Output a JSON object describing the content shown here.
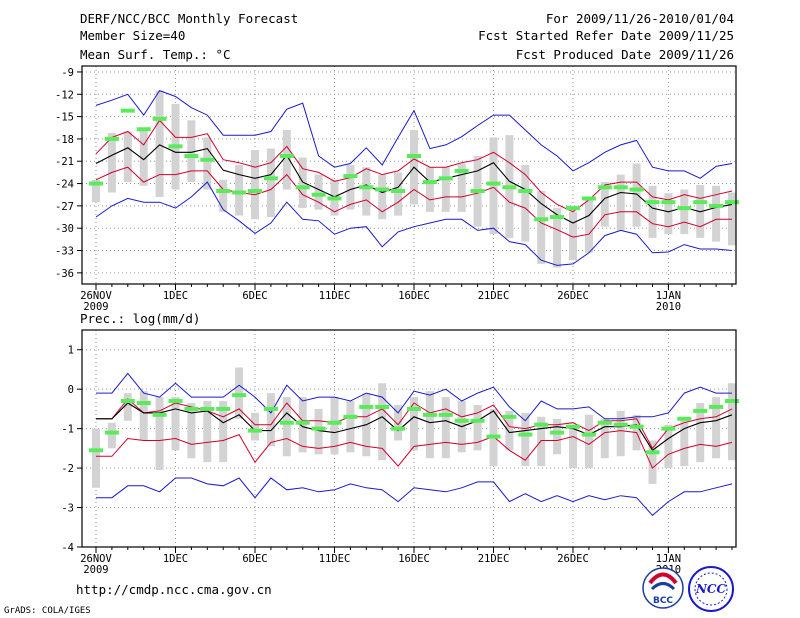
{
  "header": {
    "title": "DERF/NCC/BCC Monthly Forecast",
    "member_size": "Member Size=40",
    "variable": "Mean Surf. Temp.: °C",
    "period": "For 2009/11/26-2010/01/04",
    "started": "Fcst Started Refer Date 2009/11/25",
    "produced": "Fcst Produced Date 2009/11/26"
  },
  "footer": {
    "url": "http://cmdp.ncc.cma.gov.cn",
    "credit": "GrADS: COLA/IGES",
    "logo_bcc": "BCC",
    "logo_ncc": "NCC"
  },
  "colors": {
    "box": "#d3d3d3",
    "mean": "#000000",
    "inner": "#d2002d",
    "outer": "#1a1acd",
    "marker": "#5aeb5a"
  },
  "chart_data": [
    {
      "type": "line",
      "title": "Mean Surf. Temp.: °C",
      "ylim": [
        -37.5,
        -8.2
      ],
      "yticks": [
        -9,
        -12,
        -15,
        -18,
        -21,
        -24,
        -27,
        -30,
        -33,
        -36
      ],
      "xlabels": [
        {
          "day": 0,
          "label": "26NOV",
          "sub": "2009"
        },
        {
          "day": 5,
          "label": "1DEC"
        },
        {
          "day": 10,
          "label": "6DEC"
        },
        {
          "day": 15,
          "label": "11DEC"
        },
        {
          "day": 20,
          "label": "16DEC"
        },
        {
          "day": 25,
          "label": "21DEC"
        },
        {
          "day": 30,
          "label": "26DEC"
        },
        {
          "day": 36,
          "label": "1JAN",
          "sub": "2010"
        }
      ],
      "series": [
        {
          "name": "max",
          "values": [
            -13.5,
            -12.8,
            -12,
            -14.8,
            -11.5,
            -12.3,
            -13.8,
            -14.8,
            -17.5,
            -17.5,
            -17.5,
            -17,
            -14,
            -13.2,
            -20.3,
            -21.8,
            -21.3,
            -19.2,
            -21.5,
            -17.8,
            -14.2,
            -19.3,
            -18.8,
            -17.7,
            -16.2,
            -14.8,
            -14.8,
            -16.8,
            -18.8,
            -20.3,
            -22.3,
            -21.2,
            -19.8,
            -18.8,
            -18.2,
            -21.8,
            -22.3,
            -22.3,
            -23.3,
            -21.7,
            -21.3
          ]
        },
        {
          "name": "p75",
          "values": [
            -20,
            -17.8,
            -17,
            -18.8,
            -15.5,
            -17.8,
            -17.8,
            -17.3,
            -20.8,
            -21.2,
            -21.8,
            -21.2,
            -19,
            -22,
            -22.5,
            -23.7,
            -23.2,
            -22,
            -22.8,
            -22.3,
            -20.7,
            -21.8,
            -21.8,
            -21.2,
            -20.8,
            -19.8,
            -21.2,
            -22.8,
            -25.2,
            -26.8,
            -27.8,
            -26.2,
            -24.2,
            -23.8,
            -23.8,
            -25.8,
            -26.2,
            -25.5,
            -26,
            -25.5,
            -25
          ]
        },
        {
          "name": "mean",
          "values": [
            -21.3,
            -20.2,
            -19.2,
            -20.8,
            -18.8,
            -19.8,
            -19.8,
            -19.3,
            -22.2,
            -22.8,
            -23.3,
            -22.8,
            -20.2,
            -23.8,
            -24.8,
            -25.8,
            -24.8,
            -24.2,
            -25.2,
            -24.5,
            -21.8,
            -23.8,
            -23.3,
            -22.8,
            -22.3,
            -21.2,
            -23.7,
            -24.8,
            -26.7,
            -28.2,
            -29.3,
            -28.3,
            -26,
            -25.2,
            -25.4,
            -27.3,
            -27.8,
            -27.2,
            -27.8,
            -27.2,
            -26.8
          ]
        },
        {
          "name": "p25",
          "values": [
            -23.5,
            -22.5,
            -21.8,
            -23.8,
            -22.8,
            -22.8,
            -22.3,
            -22.3,
            -24.8,
            -25.2,
            -25.5,
            -24.8,
            -22.8,
            -25.5,
            -26.5,
            -27.8,
            -26.8,
            -26.2,
            -27.8,
            -26.5,
            -24.8,
            -26.2,
            -25.8,
            -25.8,
            -25.3,
            -24.5,
            -26.5,
            -27.3,
            -29.3,
            -30.2,
            -31.2,
            -30.8,
            -28.2,
            -27.8,
            -27.8,
            -29.4,
            -29.8,
            -29.2,
            -29.8,
            -28.8,
            -28.8
          ]
        },
        {
          "name": "min",
          "values": [
            -28.5,
            -27,
            -26,
            -26.5,
            -26.5,
            -27.3,
            -25.8,
            -23.8,
            -27.5,
            -29,
            -30.7,
            -29.3,
            -26.5,
            -28.8,
            -29,
            -30.8,
            -30,
            -29.8,
            -32.5,
            -30.5,
            -29.8,
            -29.3,
            -28.8,
            -28.8,
            -30.3,
            -30,
            -31.8,
            -32.2,
            -34.3,
            -35,
            -34.8,
            -33.3,
            -31,
            -30.3,
            -30.8,
            -33.3,
            -33.2,
            -32.2,
            -32.8,
            -32.8,
            -33
          ]
        },
        {
          "name": "box_top",
          "values": [
            -23.5,
            -17.2,
            -17,
            -16.5,
            -11.5,
            -13.3,
            -15.5,
            -17.8,
            -23.5,
            -21.5,
            -19.5,
            -19.3,
            -16.8,
            -20.5,
            -22.8,
            -23.5,
            -21.5,
            -21.8,
            -22.8,
            -22.5,
            -16.8,
            -21.8,
            -21.8,
            -21.3,
            -20.3,
            -17.8,
            -17.5,
            -21.5,
            -25,
            -27.3,
            -27.8,
            -26.2,
            -23.8,
            -22.8,
            -21.3,
            -24.3,
            -25.3,
            -24.8,
            -24.2,
            -24.3,
            -25.2
          ]
        },
        {
          "name": "box_bottom",
          "values": [
            -26.5,
            -25.2,
            -23.8,
            -24.3,
            -25.8,
            -24.8,
            -23.8,
            -24.8,
            -27.8,
            -28.3,
            -28.8,
            -28.5,
            -24.8,
            -27.3,
            -27.5,
            -28.3,
            -27.5,
            -28.3,
            -28.8,
            -28.3,
            -26.8,
            -27.8,
            -27.8,
            -27.8,
            -29.8,
            -30.8,
            -31.3,
            -31.8,
            -34.8,
            -35.3,
            -34.3,
            -33.3,
            -29.8,
            -30.3,
            -29.8,
            -31.3,
            -30.8,
            -30.8,
            -31.3,
            -31.8,
            -32.3
          ]
        },
        {
          "name": "obs_marker",
          "values": [
            -24,
            -18,
            -14.2,
            -16.7,
            -15.3,
            -19,
            -20.3,
            -20.8,
            -25,
            -25.2,
            -25,
            -23.3,
            -20.3,
            -24.5,
            -25.5,
            -26,
            -23,
            -24.5,
            -24.8,
            -25,
            -20.3,
            -23.8,
            -23.3,
            -22.3,
            -25,
            -24,
            -24.5,
            -25,
            -28.8,
            -28.5,
            -27.3,
            -26,
            -24.5,
            -24.5,
            -24.8,
            -26.5,
            -26.5,
            -27.3,
            -26.5,
            -27,
            -26.5
          ]
        }
      ]
    },
    {
      "type": "line",
      "title": "Prec.: log(mm/d)",
      "ylim": [
        -4,
        1.5
      ],
      "yticks": [
        1,
        0,
        -1,
        -2,
        -3,
        -4
      ],
      "xlabels": [
        {
          "day": 0,
          "label": "26NOV",
          "sub": "2009"
        },
        {
          "day": 5,
          "label": "1DEC"
        },
        {
          "day": 10,
          "label": "6DEC"
        },
        {
          "day": 15,
          "label": "11DEC"
        },
        {
          "day": 20,
          "label": "16DEC"
        },
        {
          "day": 25,
          "label": "21DEC"
        },
        {
          "day": 30,
          "label": "26DEC"
        },
        {
          "day": 36,
          "label": "1JAN",
          "sub": "2010"
        }
      ],
      "series": [
        {
          "name": "max",
          "values": [
            -0.1,
            -0.1,
            0.4,
            -0.1,
            -0.2,
            0.15,
            -0.2,
            -0.2,
            -0.2,
            0.1,
            -0.2,
            -0.6,
            0.1,
            -0.3,
            -0.2,
            -0.2,
            -0.3,
            -0.1,
            -0.2,
            -0.6,
            -0.05,
            -0.15,
            0,
            -0.3,
            -0.1,
            0.05,
            -0.45,
            -0.8,
            -0.3,
            -0.5,
            -0.5,
            -0.45,
            -0.75,
            -0.75,
            -0.7,
            -0.7,
            -0.6,
            -0.1,
            0.05,
            -0.1,
            -0.1
          ]
        },
        {
          "name": "p75",
          "values": [
            -0.75,
            -0.75,
            -0.25,
            -0.6,
            -0.55,
            -0.35,
            -0.45,
            -0.55,
            -0.7,
            -0.5,
            -0.9,
            -0.9,
            -0.35,
            -0.8,
            -0.8,
            -0.85,
            -0.7,
            -0.7,
            -0.5,
            -0.9,
            -0.35,
            -0.6,
            -0.5,
            -0.7,
            -0.6,
            -0.4,
            -0.95,
            -1,
            -0.9,
            -0.9,
            -0.85,
            -1.05,
            -0.8,
            -0.8,
            -0.75,
            -1.5,
            -1,
            -0.85,
            -0.75,
            -0.7,
            -0.5
          ]
        },
        {
          "name": "mean",
          "values": [
            -0.75,
            -0.75,
            -0.35,
            -0.6,
            -0.6,
            -0.5,
            -0.6,
            -0.55,
            -0.85,
            -0.65,
            -1.05,
            -1.05,
            -0.6,
            -0.95,
            -1.05,
            -1.1,
            -1,
            -0.9,
            -0.7,
            -1.05,
            -0.7,
            -0.85,
            -0.8,
            -0.95,
            -0.8,
            -0.55,
            -1.1,
            -1.05,
            -1,
            -0.95,
            -1,
            -1.15,
            -0.95,
            -0.95,
            -0.9,
            -1.55,
            -1.25,
            -1,
            -0.85,
            -0.8,
            -0.65
          ]
        },
        {
          "name": "p25",
          "values": [
            -1.7,
            -1.7,
            -1.25,
            -1.3,
            -1.3,
            -1.25,
            -1.4,
            -1.35,
            -1.3,
            -1.15,
            -1.85,
            -1.35,
            -1.25,
            -1.45,
            -1.5,
            -1.45,
            -1.35,
            -1.45,
            -1.5,
            -1.95,
            -1.45,
            -1.4,
            -1.35,
            -1.4,
            -1.35,
            -1.2,
            -1.55,
            -1.8,
            -1.3,
            -1.3,
            -1.2,
            -1.4,
            -1.1,
            -1.05,
            -1.1,
            -2,
            -1.65,
            -1.5,
            -1.4,
            -1.45,
            -1.35
          ]
        },
        {
          "name": "min",
          "values": [
            -2.75,
            -2.75,
            -2.45,
            -2.45,
            -2.6,
            -2.25,
            -2.25,
            -2.4,
            -2.45,
            -2.25,
            -2.75,
            -2.25,
            -2.55,
            -2.5,
            -2.6,
            -2.55,
            -2.4,
            -2.5,
            -2.55,
            -2.85,
            -2.5,
            -2.55,
            -2.6,
            -2.5,
            -2.35,
            -2.35,
            -2.85,
            -2.65,
            -2.85,
            -2.7,
            -2.85,
            -2.7,
            -2.8,
            -2.7,
            -2.75,
            -3.2,
            -2.85,
            -2.6,
            -2.6,
            -2.5,
            -2.4
          ]
        },
        {
          "name": "box_top",
          "values": [
            -1.0,
            -0.85,
            -0.1,
            -0.05,
            -0.2,
            -0.2,
            -0.35,
            -0.3,
            -0.3,
            0.55,
            -0.6,
            -0.1,
            -0.2,
            -0.2,
            -0.5,
            -0.2,
            -0.3,
            -0.1,
            0.15,
            -0.4,
            -0.2,
            -0.05,
            -0.2,
            -0.3,
            -0.4,
            -0.5,
            -0.55,
            -0.6,
            -0.7,
            -0.75,
            -0.9,
            -0.65,
            -0.75,
            -0.55,
            -0.65,
            -1.3,
            -0.9,
            -0.7,
            -0.35,
            -0.2,
            0.15
          ]
        },
        {
          "name": "box_bottom",
          "values": [
            -2.5,
            -1.5,
            -0.8,
            -1.3,
            -2.05,
            -1.55,
            -1.75,
            -1.85,
            -1.85,
            -0.75,
            -1.3,
            -1.45,
            -1.7,
            -1.6,
            -1.65,
            -1.65,
            -1.6,
            -1.7,
            -1.8,
            -1.3,
            -1.55,
            -1.75,
            -1.75,
            -1.6,
            -1.55,
            -1.95,
            -1.55,
            -1.95,
            -1.95,
            -1.65,
            -2.0,
            -2.0,
            -1.75,
            -1.7,
            -1.55,
            -2.4,
            -2.0,
            -1.95,
            -1.85,
            -1.75,
            -1.8
          ]
        },
        {
          "name": "obs_marker",
          "values": [
            -1.55,
            -1.1,
            -0.3,
            -0.35,
            -0.65,
            -0.3,
            -0.5,
            -0.5,
            -0.5,
            -0.15,
            -1.05,
            -0.5,
            -0.85,
            -0.85,
            -1.0,
            -0.85,
            -0.7,
            -0.45,
            -0.45,
            -1.0,
            -0.5,
            -0.65,
            -0.65,
            -0.8,
            -0.8,
            -1.2,
            -0.7,
            -1.15,
            -0.9,
            -1.1,
            -0.95,
            -1.15,
            -0.85,
            -0.9,
            -0.95,
            -1.6,
            -1.0,
            -0.75,
            -0.55,
            -0.45,
            -0.3
          ]
        }
      ]
    }
  ]
}
